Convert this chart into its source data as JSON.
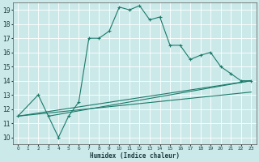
{
  "xlabel": "Humidex (Indice chaleur)",
  "bg_color": "#cce9e9",
  "grid_color": "#ffffff",
  "line_color": "#1a7a6a",
  "xlim": [
    -0.5,
    23.5
  ],
  "ylim": [
    9.5,
    19.5
  ],
  "xticks": [
    0,
    1,
    2,
    3,
    4,
    5,
    6,
    7,
    8,
    9,
    10,
    11,
    12,
    13,
    14,
    15,
    16,
    17,
    18,
    19,
    20,
    21,
    22,
    23
  ],
  "yticks": [
    10,
    11,
    12,
    13,
    14,
    15,
    16,
    17,
    18,
    19
  ],
  "line1_x": [
    0,
    2,
    3,
    4,
    5,
    6,
    7,
    8,
    9,
    10,
    11,
    12,
    13,
    14,
    15,
    16,
    17,
    18,
    19,
    20,
    21,
    22,
    23
  ],
  "line1_y": [
    11.5,
    13.0,
    11.5,
    10.0,
    11.5,
    12.5,
    17.0,
    17.0,
    17.5,
    19.2,
    19.0,
    19.3,
    18.3,
    18.5,
    16.5,
    16.5,
    15.5,
    15.8,
    16.0,
    15.0,
    14.5,
    14.0,
    14.0
  ],
  "line2_x": [
    0,
    23
  ],
  "line2_y": [
    11.5,
    14.0
  ],
  "line3_x": [
    0,
    23
  ],
  "line3_y": [
    11.5,
    13.2
  ],
  "line4_x": [
    3,
    23
  ],
  "line4_y": [
    11.5,
    14.0
  ],
  "lw": 0.8
}
